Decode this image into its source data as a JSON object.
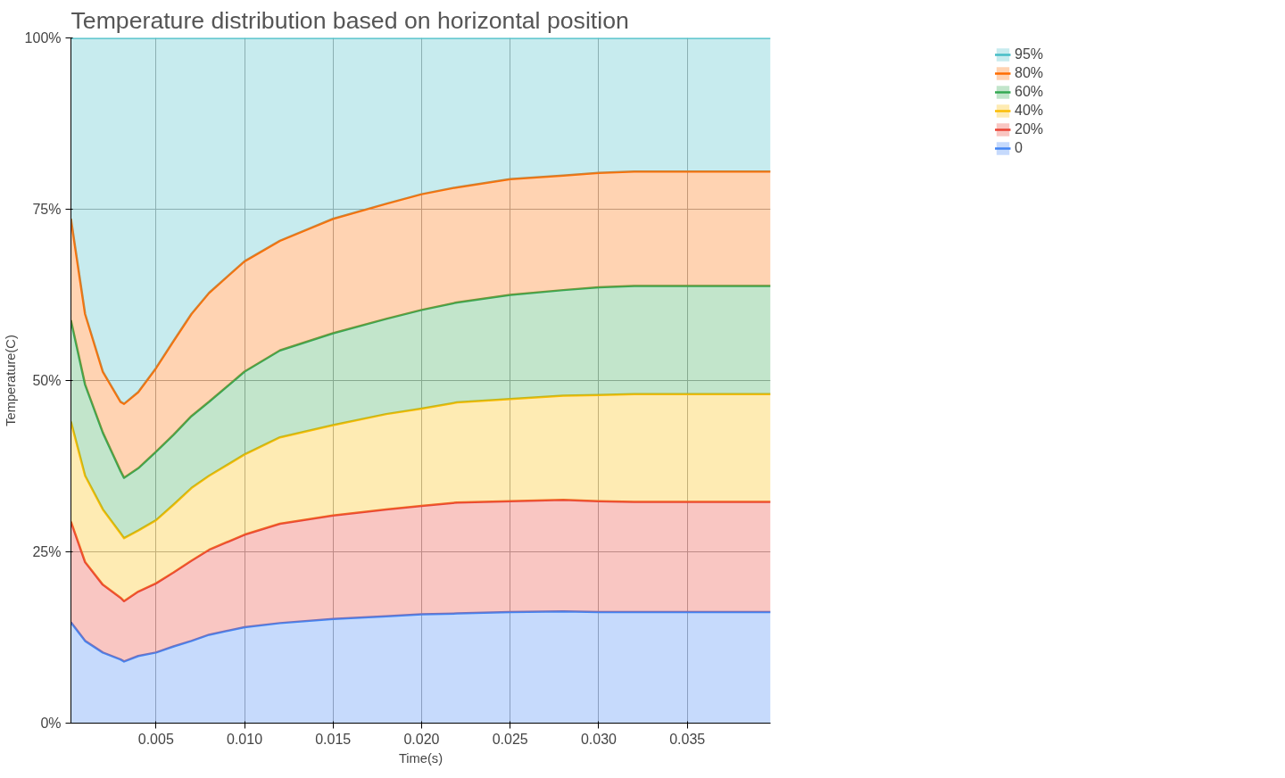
{
  "chart_data": {
    "type": "area",
    "stacked": true,
    "title": "Temperature distribution based on horizontal position",
    "xlabel": "Time(s)",
    "ylabel": "Temperature(C)",
    "x": [
      0.0002,
      0.001,
      0.002,
      0.003,
      0.0032,
      0.004,
      0.005,
      0.006,
      0.007,
      0.008,
      0.01,
      0.012,
      0.015,
      0.018,
      0.02,
      0.022,
      0.025,
      0.028,
      0.03,
      0.032,
      0.035,
      0.0397
    ],
    "series": [
      {
        "name": "0",
        "color": "#4285f4",
        "values": [
          14.7,
          12.0,
          10.3,
          9.3,
          9.0,
          9.8,
          10.3,
          11.2,
          12.0,
          12.9,
          14.0,
          14.6,
          15.2,
          15.6,
          15.9,
          16.0,
          16.2,
          16.3,
          16.2,
          16.2,
          16.2,
          16.2
        ]
      },
      {
        "name": "20%",
        "color": "#ea4335",
        "values": [
          14.7,
          11.5,
          9.9,
          9.0,
          8.8,
          9.4,
          10.1,
          10.8,
          11.7,
          12.4,
          13.5,
          14.5,
          15.1,
          15.6,
          15.8,
          16.2,
          16.2,
          16.3,
          16.2,
          16.1,
          16.1,
          16.1
        ]
      },
      {
        "name": "40%",
        "color": "#fbbc04",
        "values": [
          14.6,
          12.6,
          11.0,
          9.4,
          9.2,
          8.9,
          9.2,
          9.9,
          10.6,
          10.8,
          11.7,
          12.6,
          13.2,
          13.9,
          14.2,
          14.6,
          14.9,
          15.2,
          15.5,
          15.7,
          15.7,
          15.7
        ]
      },
      {
        "name": "60%",
        "color": "#34a853",
        "values": [
          14.8,
          13.3,
          11.2,
          9.1,
          8.8,
          9.1,
          10.0,
          10.2,
          10.5,
          10.8,
          12.1,
          12.7,
          13.4,
          13.9,
          14.4,
          14.6,
          15.2,
          15.4,
          15.7,
          15.8,
          15.8,
          15.8
        ]
      },
      {
        "name": "80%",
        "color": "#ff6d01",
        "values": [
          14.8,
          10.3,
          8.9,
          10.1,
          10.8,
          11.1,
          12.2,
          13.7,
          14.9,
          15.9,
          16.1,
          16.0,
          16.7,
          16.8,
          16.9,
          16.8,
          16.9,
          16.7,
          16.7,
          16.7,
          16.7,
          16.7
        ]
      },
      {
        "name": "95%",
        "color": "#46bdc6",
        "values": [
          26.4,
          40.3,
          48.7,
          53.1,
          53.4,
          51.7,
          48.2,
          44.2,
          40.3,
          37.2,
          32.6,
          29.6,
          26.4,
          24.2,
          22.8,
          21.8,
          20.6,
          20.1,
          19.7,
          19.5,
          19.5,
          19.5
        ]
      }
    ],
    "xlim": [
      0.0002,
      0.0397
    ],
    "ylim": [
      0,
      100
    ],
    "xticks": [
      {
        "value": 0.005,
        "label": "0.005"
      },
      {
        "value": 0.01,
        "label": "0.010"
      },
      {
        "value": 0.015,
        "label": "0.015"
      },
      {
        "value": 0.02,
        "label": "0.020"
      },
      {
        "value": 0.025,
        "label": "0.025"
      },
      {
        "value": 0.03,
        "label": "0.030"
      },
      {
        "value": 0.035,
        "label": "0.035"
      }
    ],
    "yticks": [
      {
        "value": 0,
        "label": "0%"
      },
      {
        "value": 25,
        "label": "25%"
      },
      {
        "value": 50,
        "label": "50%"
      },
      {
        "value": 75,
        "label": "75%"
      },
      {
        "value": 100,
        "label": "100%"
      }
    ],
    "grid": true,
    "legend": "top right"
  }
}
